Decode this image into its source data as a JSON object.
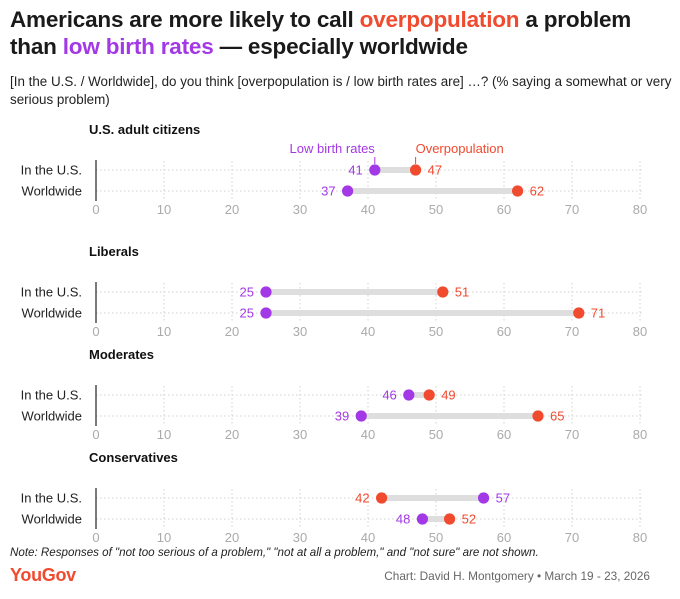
{
  "header": {
    "title_part1": "Americans are more likely to call ",
    "title_overpop": "overpopulation",
    "title_part2": " a problem than ",
    "title_low": "low birth rates",
    "title_part3": " — especially worldwide",
    "subtitle": "[In the U.S. / Worldwide], do you think [overpopulation is / low birth rates are] …? (% saying a somewhat or very serious problem)"
  },
  "colors": {
    "overpopulation": "#f04a2f",
    "low_birth_rates": "#a338e6",
    "connector": "#dedede",
    "grid": "#d0d0d0",
    "axis_text": "#aaaaaa"
  },
  "chart_data": {
    "type": "dumbbell",
    "xlim": [
      0,
      80
    ],
    "xticks": [
      0,
      10,
      20,
      30,
      40,
      50,
      60,
      70,
      80
    ],
    "legend": {
      "low_birth_rates": "Low birth rates",
      "overpopulation": "Overpopulation"
    },
    "row_labels": [
      "In the U.S.",
      "Worldwide"
    ],
    "panels": [
      {
        "title": "U.S. adult citizens",
        "rows": [
          {
            "label": "In the U.S.",
            "low_birth_rates": 41,
            "overpopulation": 47
          },
          {
            "label": "Worldwide",
            "low_birth_rates": 37,
            "overpopulation": 62
          }
        ]
      },
      {
        "title": "Liberals",
        "rows": [
          {
            "label": "In the U.S.",
            "low_birth_rates": 25,
            "overpopulation": 51
          },
          {
            "label": "Worldwide",
            "low_birth_rates": 25,
            "overpopulation": 71
          }
        ]
      },
      {
        "title": "Moderates",
        "rows": [
          {
            "label": "In the U.S.",
            "low_birth_rates": 46,
            "overpopulation": 49
          },
          {
            "label": "Worldwide",
            "low_birth_rates": 39,
            "overpopulation": 65
          }
        ]
      },
      {
        "title": "Conservatives",
        "rows": [
          {
            "label": "In the U.S.",
            "low_birth_rates": 57,
            "overpopulation": 42
          },
          {
            "label": "Worldwide",
            "low_birth_rates": 48,
            "overpopulation": 52
          }
        ]
      }
    ]
  },
  "footer": {
    "note": "Note: Responses of \"not too serious of a problem,\" \"not at all a problem,\" and \"not sure\" are not shown.",
    "logo": "YouGov",
    "credit": "Chart: David H. Montgomery • March 19 - 23, 2026"
  }
}
